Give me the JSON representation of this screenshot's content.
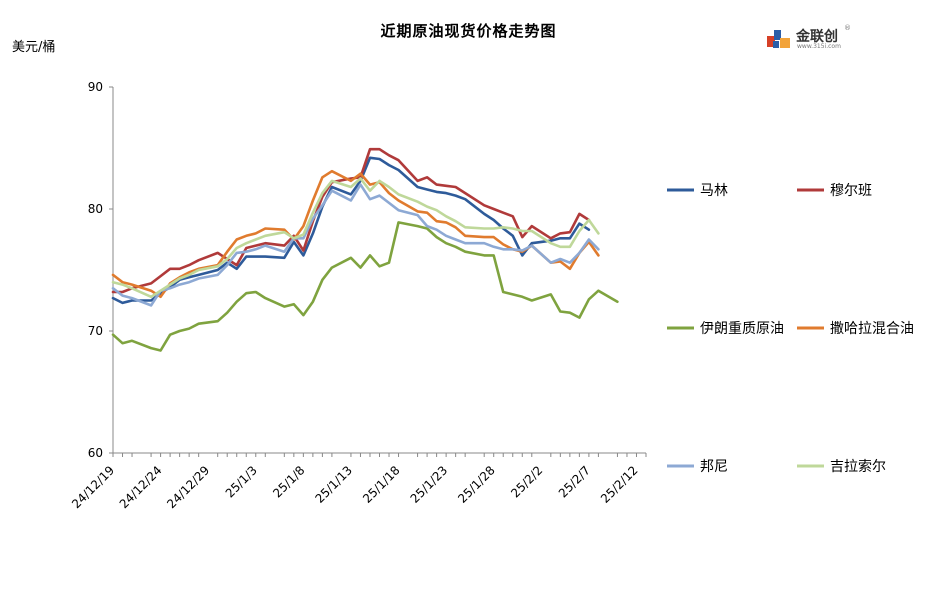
{
  "chart_data": {
    "type": "line",
    "title": "近期原油现货价格走势图",
    "ylabel": "美元/桶",
    "ylim": [
      60,
      90
    ],
    "yticks": [
      60,
      70,
      80,
      90
    ],
    "xtick_labels": [
      "24/12/19",
      "24/12/24",
      "24/12/29",
      "25/1/3",
      "25/1/8",
      "25/1/13",
      "25/1/18",
      "25/1/23",
      "25/1/28",
      "25/2/2",
      "25/2/7",
      "25/2/12"
    ],
    "legend_placement": "right",
    "x": [
      "2024-12-19",
      "2024-12-20",
      "2024-12-21",
      "2024-12-23",
      "2024-12-24",
      "2024-12-25",
      "2024-12-26",
      "2024-12-27",
      "2024-12-28",
      "2024-12-30",
      "2024-12-31",
      "2025-01-01",
      "2025-01-02",
      "2025-01-03",
      "2025-01-04",
      "2025-01-06",
      "2025-01-07",
      "2025-01-08",
      "2025-01-09",
      "2025-01-10",
      "2025-01-11",
      "2025-01-13",
      "2025-01-14",
      "2025-01-15",
      "2025-01-16",
      "2025-01-17",
      "2025-01-18",
      "2025-01-20",
      "2025-01-21",
      "2025-01-22",
      "2025-01-23",
      "2025-01-24",
      "2025-01-25",
      "2025-01-27",
      "2025-01-28",
      "2025-01-29",
      "2025-01-30",
      "2025-01-31",
      "2025-02-01",
      "2025-02-03",
      "2025-02-04",
      "2025-02-05",
      "2025-02-06",
      "2025-02-07",
      "2025-02-08",
      "2025-02-10",
      "2025-02-11",
      "2025-02-12",
      "2025-02-13"
    ],
    "series": [
      {
        "name": "马林",
        "color": "#2E5B9A",
        "values": [
          72.7,
          72.3,
          72.5,
          72.5,
          73.1,
          73.6,
          74.2,
          74.4,
          74.6,
          75.0,
          75.6,
          75.1,
          76.1,
          76.1,
          76.1,
          76.0,
          77.3,
          76.2,
          78.0,
          80.2,
          81.8,
          81.2,
          82.3,
          84.2,
          84.1,
          83.6,
          83.2,
          81.8,
          81.6,
          81.4,
          81.3,
          81.1,
          80.8,
          79.6,
          79.1,
          78.4,
          77.8,
          76.2,
          77.2,
          77.4,
          77.6,
          77.6,
          78.8,
          78.3,
          null,
          null,
          null,
          null,
          null
        ]
      },
      {
        "name": "穆尔班",
        "color": "#B03A3A",
        "values": [
          73.2,
          73.2,
          73.5,
          73.9,
          74.5,
          75.1,
          75.1,
          75.4,
          75.8,
          76.4,
          75.9,
          75.4,
          76.8,
          77.0,
          77.2,
          77.0,
          77.8,
          76.6,
          79.0,
          81.0,
          82.2,
          82.5,
          82.6,
          84.9,
          84.9,
          84.4,
          84.0,
          82.3,
          82.6,
          82.0,
          81.9,
          81.8,
          81.3,
          80.3,
          80.0,
          79.7,
          79.4,
          77.7,
          78.6,
          77.6,
          78.0,
          78.1,
          79.6,
          79.1,
          null,
          null,
          null,
          null,
          null
        ]
      },
      {
        "name": "伊朗重质原油",
        "color": "#7FA33F",
        "values": [
          69.7,
          69.0,
          69.2,
          68.6,
          68.4,
          69.7,
          70.0,
          70.2,
          70.6,
          70.8,
          71.5,
          72.4,
          73.1,
          73.2,
          72.7,
          72.0,
          72.2,
          71.3,
          72.4,
          74.2,
          75.2,
          76.0,
          75.2,
          76.2,
          75.3,
          75.6,
          78.9,
          78.6,
          78.4,
          77.7,
          77.2,
          76.9,
          76.5,
          76.2,
          76.2,
          73.2,
          73.0,
          72.8,
          72.5,
          73.0,
          71.6,
          71.5,
          71.1,
          72.6,
          73.3,
          72.4,
          null,
          null,
          null
        ]
      },
      {
        "name": "撒哈拉混合油",
        "color": "#E07B2E",
        "values": [
          74.6,
          74.0,
          73.8,
          73.3,
          72.8,
          73.9,
          74.4,
          74.8,
          75.1,
          75.4,
          76.5,
          77.5,
          77.8,
          78.0,
          78.4,
          78.3,
          77.5,
          78.6,
          80.7,
          82.6,
          83.1,
          82.3,
          82.9,
          82.0,
          82.2,
          81.3,
          80.7,
          79.8,
          79.7,
          79.0,
          78.9,
          78.5,
          77.8,
          77.7,
          77.7,
          77.1,
          76.7,
          76.5,
          77.0,
          75.6,
          75.7,
          75.1,
          76.4,
          77.3,
          76.2,
          null,
          null,
          null,
          null
        ]
      },
      {
        "name": "邦尼",
        "color": "#8DA9D4",
        "values": [
          73.5,
          72.9,
          72.7,
          72.1,
          73.3,
          73.5,
          73.8,
          74.0,
          74.3,
          74.6,
          75.4,
          76.4,
          76.5,
          76.7,
          77.0,
          76.5,
          77.6,
          77.6,
          79.2,
          80.3,
          81.5,
          80.7,
          82.0,
          80.8,
          81.1,
          80.5,
          79.9,
          79.5,
          78.6,
          78.3,
          77.8,
          77.5,
          77.2,
          77.2,
          76.9,
          76.7,
          76.7,
          76.6,
          77.0,
          75.6,
          75.9,
          75.6,
          76.4,
          77.5,
          76.7,
          null,
          null,
          null,
          null
        ]
      },
      {
        "name": "吉拉索尔",
        "color": "#BFD89A",
        "values": [
          74.0,
          73.8,
          73.5,
          72.8,
          73.3,
          73.8,
          74.3,
          74.6,
          75.0,
          75.3,
          75.9,
          76.8,
          77.2,
          77.5,
          77.8,
          78.1,
          77.6,
          77.9,
          79.7,
          81.3,
          82.3,
          81.8,
          82.5,
          81.5,
          82.3,
          81.8,
          81.2,
          80.6,
          80.2,
          79.9,
          79.4,
          79.0,
          78.5,
          78.4,
          78.4,
          78.5,
          78.4,
          78.2,
          78.2,
          77.2,
          76.9,
          76.9,
          78.2,
          79.1,
          78.0,
          null,
          null,
          null,
          null
        ]
      }
    ]
  },
  "logo": {
    "name": "金联创",
    "sub": "www.315i.com",
    "mark": "®",
    "icon": "jinlianchuang-logo-icon"
  }
}
